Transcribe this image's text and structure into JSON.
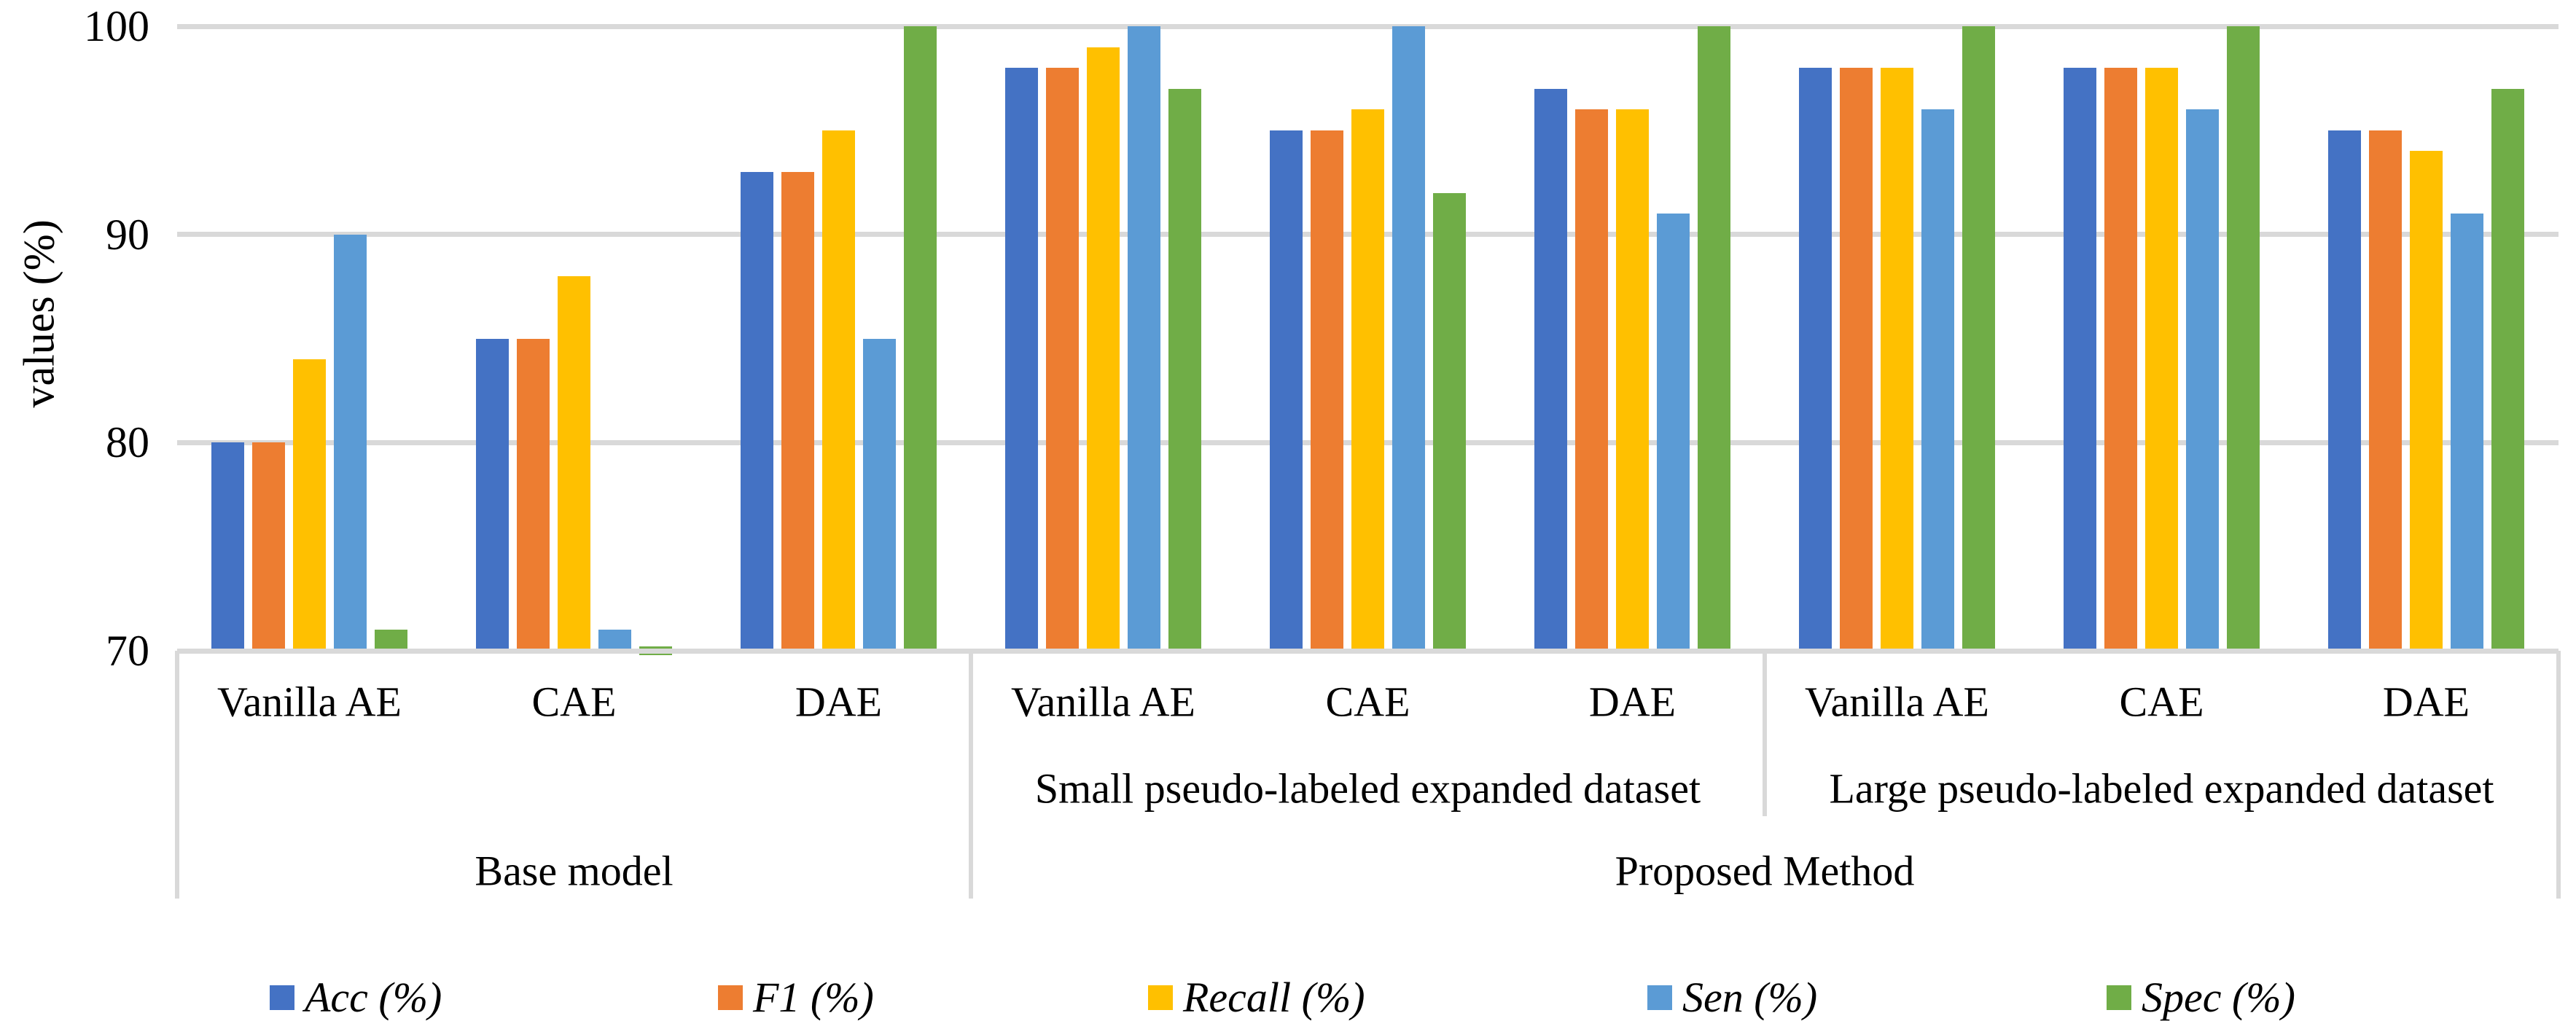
{
  "chart_data": {
    "type": "bar",
    "title": "",
    "xlabel": "",
    "ylabel": "values (%)",
    "ylim": [
      70,
      100
    ],
    "yticks": [
      100,
      90,
      80,
      70
    ],
    "grid": true,
    "legend_position": "bottom",
    "plot_bg": "#ffffff",
    "gridline_color": "#d9d9d9",
    "categories": [
      {
        "model": "Vanilla AE",
        "dataset": "",
        "method": "Base model"
      },
      {
        "model": "CAE",
        "dataset": "",
        "method": "Base model"
      },
      {
        "model": "DAE",
        "dataset": "",
        "method": "Base model"
      },
      {
        "model": "Vanilla AE",
        "dataset": "Small pseudo-labeled expanded dataset",
        "method": "Proposed Method"
      },
      {
        "model": "CAE",
        "dataset": "Small pseudo-labeled expanded dataset",
        "method": "Proposed Method"
      },
      {
        "model": "DAE",
        "dataset": "Small pseudo-labeled expanded dataset",
        "method": "Proposed Method"
      },
      {
        "model": "Vanilla AE",
        "dataset": "Large pseudo-labeled expanded dataset",
        "method": "Proposed Method"
      },
      {
        "model": "CAE",
        "dataset": "Large pseudo-labeled expanded dataset",
        "method": "Proposed Method"
      },
      {
        "model": "DAE",
        "dataset": "Large pseudo-labeled expanded dataset",
        "method": "Proposed Method"
      }
    ],
    "axis_level2": [
      {
        "label": "",
        "span": 3
      },
      {
        "label": "Small pseudo-labeled expanded dataset",
        "span": 3
      },
      {
        "label": "Large pseudo-labeled expanded dataset",
        "span": 3
      }
    ],
    "axis_level3": [
      {
        "label": "Base model",
        "span": 3
      },
      {
        "label": "Proposed Method",
        "span": 6
      }
    ],
    "series": [
      {
        "name": "Acc (%)",
        "color": "#4472C4",
        "values": [
          80,
          85,
          93,
          98,
          95,
          97,
          98,
          98,
          95
        ]
      },
      {
        "name": "F1 (%)",
        "color": "#ED7D31",
        "values": [
          80,
          85,
          93,
          98,
          95,
          96,
          98,
          98,
          95
        ]
      },
      {
        "name": "Recall (%)",
        "color": "#FFC000",
        "values": [
          84,
          88,
          95,
          99,
          96,
          96,
          98,
          98,
          94
        ]
      },
      {
        "name": "Sen (%)",
        "color": "#5B9BD5",
        "values": [
          90,
          71,
          85,
          100,
          100,
          91,
          96,
          96,
          91
        ]
      },
      {
        "name": "Spec (%)",
        "color": "#70AD47",
        "values": [
          71,
          70,
          100,
          97,
          92,
          100,
          100,
          100,
          97
        ]
      }
    ]
  }
}
